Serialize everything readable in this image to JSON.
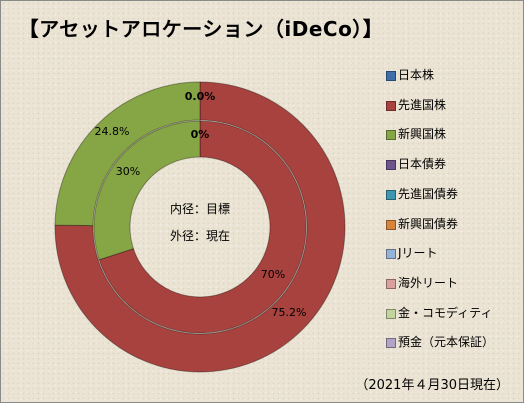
{
  "chart_data": {
    "type": "donut",
    "title": "【アセットアロケーション（iDeCo）】",
    "rings": [
      {
        "name": "目標",
        "values": [
          0,
          70,
          30,
          0,
          0,
          0,
          0,
          0,
          0,
          0
        ]
      },
      {
        "name": "現在",
        "values": [
          0.0,
          75.2,
          24.8,
          0,
          0,
          0,
          0,
          0,
          0,
          0
        ]
      }
    ],
    "categories": [
      "日本株",
      "先進国株",
      "新興国株",
      "日本債券",
      "先進国債券",
      "新興国債券",
      "Jリート",
      "海外リート",
      "金・コモディティ",
      "預金（元本保証）"
    ],
    "colors": [
      "#3f6fa9",
      "#a8423f",
      "#86a545",
      "#6e548d",
      "#3c96b0",
      "#d9843b",
      "#95b2d7",
      "#d9a09e",
      "#c3d59f",
      "#b2a3c7"
    ],
    "data_labels": {
      "inner": [
        "0%",
        "70%",
        "30%"
      ],
      "outer": [
        "0.0%",
        "75.2%",
        "24.8%"
      ]
    },
    "center_labels": [
      "内径：目標",
      "外径：現在"
    ],
    "legend_position": "right"
  },
  "footnote": "（2021年４月30日現在）"
}
